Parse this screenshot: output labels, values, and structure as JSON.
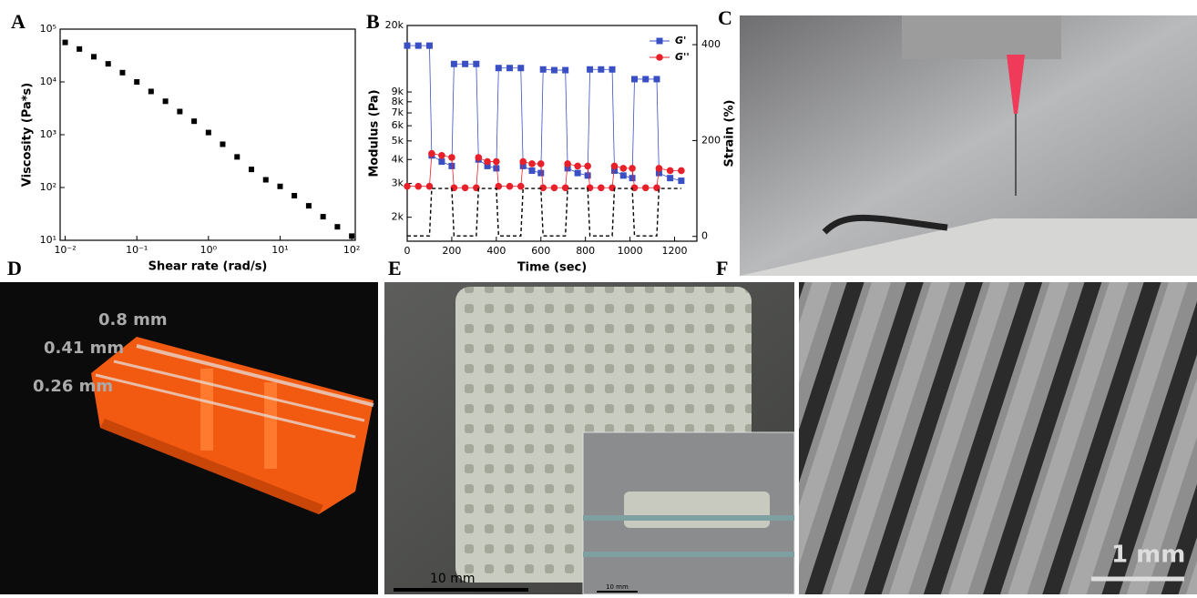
{
  "chart_data": [
    {
      "type": "scatter",
      "xlabel": "Shear rate (rad/s)",
      "ylabel": "Viscosity (Pa*s)",
      "xlog": true,
      "ylog": true,
      "xlim": [
        0.0085,
        112
      ],
      "ylim": [
        10,
        100000
      ],
      "xticks": [
        {
          "value": 0.01,
          "label": "10⁻²"
        },
        {
          "value": 0.1,
          "label": "10⁻¹"
        },
        {
          "value": 1,
          "label": "10⁰"
        },
        {
          "value": 10,
          "label": "10¹"
        },
        {
          "value": 100,
          "label": "10²"
        }
      ],
      "yticks": [
        {
          "value": 10,
          "label": "10¹"
        },
        {
          "value": 100,
          "label": "10²"
        },
        {
          "value": 1000,
          "label": "10³"
        },
        {
          "value": 10000,
          "label": "10⁴"
        },
        {
          "value": 100000,
          "label": "10⁵"
        }
      ],
      "color": "#000000",
      "x": [
        0.01,
        0.0158,
        0.0251,
        0.0398,
        0.0631,
        0.1,
        0.158,
        0.251,
        0.398,
        0.631,
        1,
        1.58,
        2.51,
        3.98,
        6.31,
        10,
        15.8,
        25.1,
        39.8,
        63.1,
        100
      ],
      "values": [
        56000,
        42000,
        30000,
        22000,
        15000,
        10000,
        6600,
        4300,
        2750,
        1800,
        1100,
        660,
        380,
        220,
        140,
        105,
        70,
        45,
        28,
        18,
        12
      ]
    },
    {
      "type": "line",
      "xlabel": "Time (sec)",
      "ylabel": "Modulus (Pa)",
      "y2label": "Strain (%)",
      "ylog": true,
      "xlim": [
        0,
        1300
      ],
      "ylim": [
        1500,
        20000
      ],
      "y2lim": [
        -10,
        440
      ],
      "xticks": [
        0,
        200,
        400,
        600,
        800,
        1000,
        1200
      ],
      "yticks": [
        {
          "value": 2000,
          "label": "2k"
        },
        {
          "value": 3000,
          "label": "3k"
        },
        {
          "value": 4000,
          "label": "4k"
        },
        {
          "value": 5000,
          "label": "5k"
        },
        {
          "value": 6000,
          "label": "6k"
        },
        {
          "value": 7000,
          "label": "7k"
        },
        {
          "value": 8000,
          "label": "8k"
        },
        {
          "value": 9000,
          "label": "9k"
        },
        {
          "value": 20000,
          "label": "20k"
        }
      ],
      "y2ticks": [
        0,
        200,
        400
      ],
      "series": [
        {
          "name": "G'",
          "color": "#3a4fc4",
          "marker": "square",
          "x": [
            0,
            50,
            100,
            110,
            155,
            200,
            210,
            260,
            310,
            320,
            360,
            400,
            410,
            460,
            510,
            520,
            560,
            600,
            610,
            660,
            710,
            720,
            765,
            810,
            820,
            870,
            920,
            930,
            970,
            1010,
            1020,
            1070,
            1120,
            1130,
            1180,
            1230
          ],
          "values": [
            15700,
            15700,
            15700,
            4200,
            3900,
            3700,
            12600,
            12600,
            12600,
            4000,
            3700,
            3600,
            12000,
            12000,
            12000,
            3700,
            3500,
            3400,
            11800,
            11700,
            11700,
            3600,
            3400,
            3300,
            11800,
            11800,
            11800,
            3500,
            3300,
            3200,
            10500,
            10500,
            10500,
            3400,
            3200,
            3100
          ]
        },
        {
          "name": "G''",
          "color": "#e8202a",
          "marker": "circle",
          "x": [
            0,
            50,
            100,
            110,
            155,
            200,
            210,
            260,
            310,
            320,
            360,
            400,
            410,
            460,
            510,
            520,
            560,
            600,
            610,
            660,
            710,
            720,
            765,
            810,
            820,
            870,
            920,
            930,
            970,
            1010,
            1020,
            1070,
            1120,
            1130,
            1180,
            1230
          ],
          "values": [
            2900,
            2900,
            2900,
            4300,
            4200,
            4100,
            2850,
            2850,
            2850,
            4100,
            3900,
            3900,
            2900,
            2900,
            2900,
            3900,
            3800,
            3800,
            2850,
            2850,
            2850,
            3800,
            3700,
            3700,
            2850,
            2850,
            2850,
            3700,
            3600,
            3600,
            2850,
            2850,
            2850,
            3600,
            3500,
            3500
          ]
        },
        {
          "color": "#000000",
          "axis": "y2",
          "dash": true,
          "x": [
            0,
            100,
            110,
            200,
            210,
            310,
            320,
            400,
            410,
            510,
            520,
            600,
            610,
            710,
            720,
            810,
            820,
            920,
            930,
            1010,
            1020,
            1120,
            1130,
            1230
          ],
          "values": [
            1,
            1,
            100,
            100,
            1,
            1,
            100,
            100,
            1,
            1,
            100,
            100,
            1,
            1,
            100,
            100,
            1,
            1,
            100,
            100,
            1,
            1,
            100,
            100
          ]
        }
      ]
    }
  ],
  "panels": {
    "letters": [
      "A",
      "B",
      "C",
      "D",
      "E",
      "F"
    ],
    "d_labels": [
      "0.8 mm",
      "0.41 mm",
      "0.26 mm"
    ],
    "e_scale": "10 mm",
    "e_inset_scale": "10 mm",
    "f_scale": "1 mm"
  }
}
